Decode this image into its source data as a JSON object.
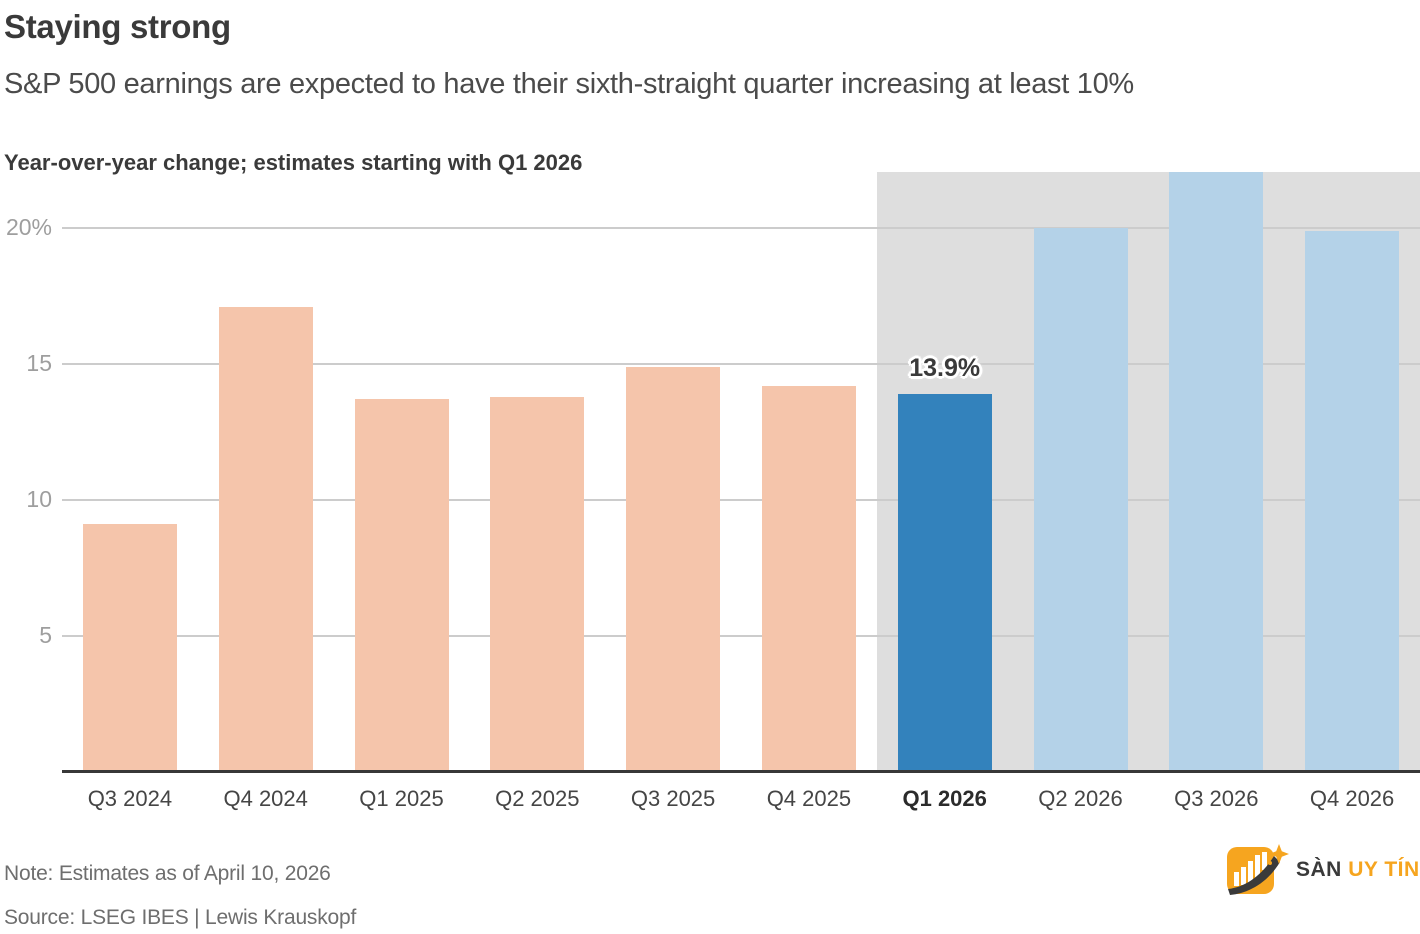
{
  "header": {
    "title": "Staying strong",
    "subtitle": "S&P 500 earnings are expected to have their sixth-straight quarter increasing at least 10%"
  },
  "chart_data": {
    "type": "bar",
    "title": "Staying strong",
    "kicker": "Year-over-year change; estimates starting with Q1 2026",
    "categories": [
      "Q3 2024",
      "Q4 2024",
      "Q1 2025",
      "Q2 2025",
      "Q3 2025",
      "Q4 2025",
      "Q1 2026",
      "Q2 2026",
      "Q3 2026",
      "Q4 2026"
    ],
    "values": [
      9.1,
      17.1,
      13.7,
      13.8,
      14.9,
      14.2,
      13.9,
      20.0,
      22.1,
      19.9
    ],
    "ylabel": "Year-over-year change (%)",
    "xlabel": "",
    "ylim": [
      0,
      22.06
    ],
    "y_ticks": [
      5,
      10,
      15,
      20
    ],
    "y_tick_labels": [
      "5",
      "10",
      "15",
      "20%"
    ],
    "grid": true,
    "legend": "none",
    "estimate_start_index": 6,
    "highlight_index": 6,
    "highlight_label": "13.9%",
    "colors": {
      "actual_bar": "#f5c5ab",
      "estimate_bar": "#b4d2e8",
      "highlight_bar": "#3382bc",
      "estimate_band": "#dedede",
      "gridline": "#cccccc",
      "axis_line": "#383838"
    }
  },
  "footer": {
    "note": "Note: Estimates as of April 10, 2026",
    "source": "Source: LSEG IBES | Lewis Krauskopf"
  },
  "logo": {
    "icon": "bar-chart-growth-icon",
    "text_primary": "SÀN",
    "text_accent": "UY TÍN",
    "accent_color": "#f6a51f",
    "dark_color": "#3a3a3a"
  }
}
